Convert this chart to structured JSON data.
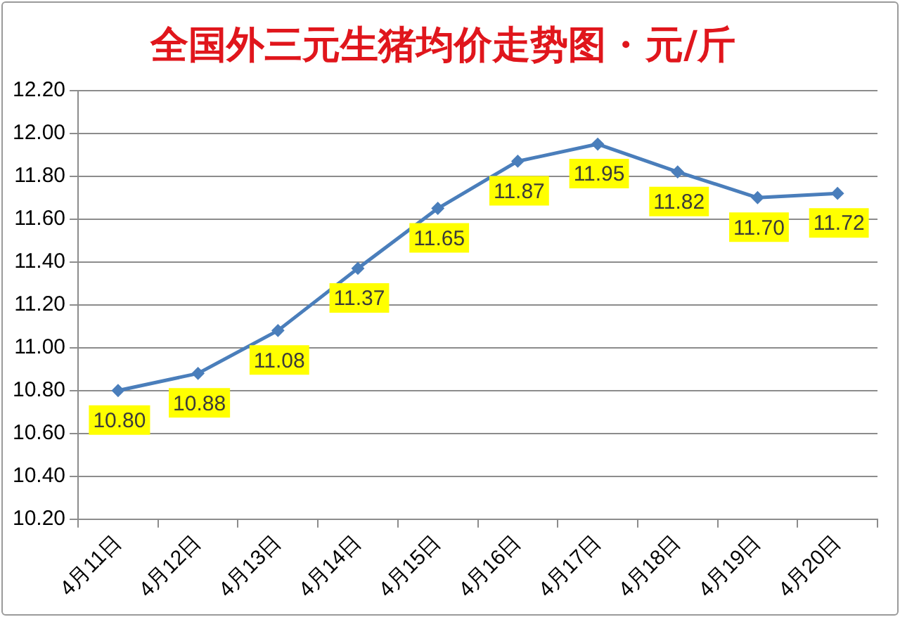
{
  "chart_data": {
    "type": "line",
    "title": "全国外三元生猪均价走势图 · 元/斤",
    "categories": [
      "4月11日",
      "4月12日",
      "4月13日",
      "4月14日",
      "4月15日",
      "4月16日",
      "4月17日",
      "4月18日",
      "4月19日",
      "4月20日"
    ],
    "series": [
      {
        "color": "#4a7ebb",
        "values": [
          10.8,
          10.88,
          11.08,
          11.37,
          11.65,
          11.87,
          11.95,
          11.82,
          11.7,
          11.72
        ],
        "value_labels": [
          "10.80",
          "10.88",
          "11.08",
          "11.37",
          "11.65",
          "11.87",
          "11.95",
          "11.82",
          "11.70",
          "11.72"
        ]
      }
    ],
    "ylim": [
      10.2,
      12.2
    ],
    "yticks": [
      {
        "value": 10.2,
        "label": "10.20"
      },
      {
        "value": 10.4,
        "label": "10.40"
      },
      {
        "value": 10.6,
        "label": "10.60"
      },
      {
        "value": 10.8,
        "label": "10.80"
      },
      {
        "value": 11.0,
        "label": "11.00"
      },
      {
        "value": 11.2,
        "label": "11.20"
      },
      {
        "value": 11.4,
        "label": "11.40"
      },
      {
        "value": 11.6,
        "label": "11.60"
      },
      {
        "value": 11.8,
        "label": "11.80"
      },
      {
        "value": 12.0,
        "label": "12.00"
      },
      {
        "value": 12.2,
        "label": "12.20"
      }
    ],
    "grid": "y",
    "marker": "diamond",
    "line_style": "solid"
  }
}
